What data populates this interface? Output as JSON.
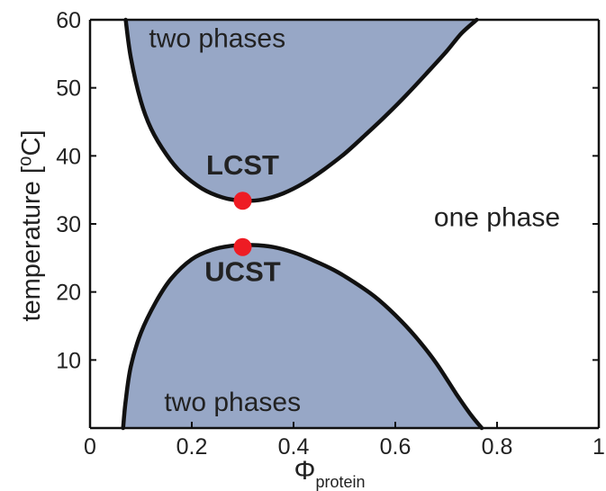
{
  "chart_data": {
    "type": "area",
    "title": "",
    "xlabel": "Φ",
    "xlabel_subscript": "protein",
    "ylabel": "temperature [⁰C]",
    "xlim": [
      0,
      1
    ],
    "ylim": [
      0,
      60
    ],
    "x_ticks": [
      0,
      0.2,
      0.4,
      0.6,
      0.8,
      1
    ],
    "x_tick_labels": [
      "0",
      "0.2",
      "0.4",
      "0.6",
      "0.8",
      "1"
    ],
    "y_ticks": [
      10,
      20,
      30,
      40,
      50,
      60
    ],
    "y_tick_labels": [
      "10",
      "20",
      "30",
      "40",
      "50",
      "60"
    ],
    "grid": false,
    "colors": {
      "region_fill": "#97a7c6",
      "boundary": "#111111",
      "critical_point": "#ee1c24",
      "text": "#222222"
    },
    "series": [
      {
        "name": "LCST boundary",
        "region": "two phases (upper)",
        "x": [
          0.07,
          0.08,
          0.1,
          0.12,
          0.15,
          0.18,
          0.22,
          0.26,
          0.3,
          0.34,
          0.38,
          0.42,
          0.46,
          0.5,
          0.54,
          0.58,
          0.62,
          0.66,
          0.7,
          0.73,
          0.76
        ],
        "y": [
          60,
          54.5,
          48,
          44,
          40.2,
          37.5,
          35.2,
          33.9,
          33.4,
          33.6,
          34.5,
          36,
          38,
          40.3,
          43,
          45.8,
          48.8,
          52,
          55.3,
          58,
          60
        ]
      },
      {
        "name": "UCST boundary",
        "region": "two phases (lower)",
        "x": [
          0.065,
          0.07,
          0.08,
          0.1,
          0.13,
          0.16,
          0.2,
          0.24,
          0.28,
          0.32,
          0.36,
          0.4,
          0.44,
          0.48,
          0.52,
          0.56,
          0.6,
          0.64,
          0.68,
          0.72,
          0.75,
          0.77
        ],
        "y": [
          0,
          4,
          9,
          14,
          18.6,
          22,
          24.8,
          26.2,
          26.8,
          26.9,
          26.6,
          25.8,
          24.6,
          23.2,
          21.4,
          19.3,
          16.6,
          13.4,
          9.6,
          5,
          1.8,
          0
        ]
      }
    ],
    "points": [
      {
        "label": "LCST",
        "x": 0.3,
        "y": 33.4
      },
      {
        "label": "UCST",
        "x": 0.3,
        "y": 26.6
      }
    ],
    "annotations": [
      {
        "text": "two phases",
        "x": 0.25,
        "y": 56
      },
      {
        "text": "two phases",
        "x": 0.28,
        "y": 2.5
      },
      {
        "text": "one phase",
        "x": 0.8,
        "y": 29.7
      },
      {
        "text": "LCST",
        "x": 0.3,
        "y": 37.3
      },
      {
        "text": "UCST",
        "x": 0.3,
        "y": 21.6
      }
    ]
  }
}
